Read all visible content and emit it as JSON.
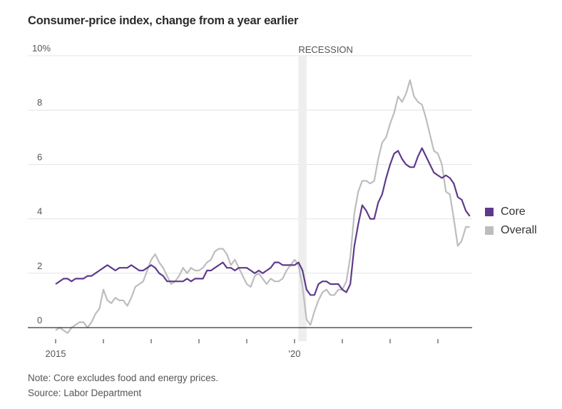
{
  "title": "Consumer-price index, change from a year earlier",
  "footnote": "Note: Core excludes food and energy prices.",
  "source": "Source: Labor Department",
  "colors": {
    "core": "#5e3a8c",
    "overall": "#bdbdbd",
    "recession": "#eeeeee",
    "grid": "#e3e3e3",
    "axis": "#333333"
  },
  "chart_data": {
    "type": "line",
    "title": "Consumer-price index, change from a year earlier",
    "xlabel": "",
    "ylabel": "",
    "ylim": [
      0,
      10
    ],
    "yticks": [
      {
        "value": 10,
        "label": "10%"
      },
      {
        "value": 8,
        "label": "8"
      },
      {
        "value": 6,
        "label": "6"
      },
      {
        "value": 4,
        "label": "4"
      },
      {
        "value": 2,
        "label": "2"
      },
      {
        "value": 0,
        "label": "0"
      }
    ],
    "xticks": [
      {
        "year": 2015,
        "label": "2015"
      },
      {
        "year": 2016,
        "label": ""
      },
      {
        "year": 2017,
        "label": ""
      },
      {
        "year": 2018,
        "label": ""
      },
      {
        "year": 2019,
        "label": ""
      },
      {
        "year": 2020,
        "label": "'20"
      },
      {
        "year": 2021,
        "label": ""
      },
      {
        "year": 2022,
        "label": ""
      },
      {
        "year": 2023,
        "label": ""
      }
    ],
    "x_start": "2015-01",
    "x_frequency": "monthly",
    "annotation": {
      "label": "RECESSION",
      "start": 2020.08,
      "end": 2020.25
    },
    "legend": {
      "position": "right",
      "entries": [
        "Core",
        "Overall"
      ]
    },
    "grid": true,
    "series": [
      {
        "name": "Core",
        "values": [
          1.6,
          1.7,
          1.8,
          1.8,
          1.7,
          1.8,
          1.8,
          1.8,
          1.9,
          1.9,
          2.0,
          2.1,
          2.2,
          2.3,
          2.2,
          2.1,
          2.2,
          2.2,
          2.2,
          2.3,
          2.2,
          2.1,
          2.1,
          2.2,
          2.3,
          2.2,
          2.0,
          1.9,
          1.7,
          1.7,
          1.7,
          1.7,
          1.7,
          1.8,
          1.7,
          1.8,
          1.8,
          1.8,
          2.1,
          2.1,
          2.2,
          2.3,
          2.4,
          2.2,
          2.2,
          2.1,
          2.2,
          2.2,
          2.2,
          2.1,
          2.0,
          2.1,
          2.0,
          2.1,
          2.2,
          2.4,
          2.4,
          2.3,
          2.3,
          2.3,
          2.3,
          2.4,
          2.1,
          1.4,
          1.2,
          1.2,
          1.6,
          1.7,
          1.7,
          1.6,
          1.6,
          1.6,
          1.4,
          1.3,
          1.6,
          3.0,
          3.8,
          4.5,
          4.3,
          4.0,
          4.0,
          4.6,
          4.9,
          5.5,
          6.0,
          6.4,
          6.5,
          6.2,
          6.0,
          5.9,
          5.9,
          6.3,
          6.6,
          6.3,
          6.0,
          5.7,
          5.6,
          5.5,
          5.6,
          5.5,
          5.3,
          4.8,
          4.7,
          4.3,
          4.1
        ]
      },
      {
        "name": "Overall",
        "values": [
          -0.1,
          0.0,
          -0.1,
          -0.2,
          0.0,
          0.1,
          0.2,
          0.2,
          0.0,
          0.2,
          0.5,
          0.7,
          1.4,
          1.0,
          0.9,
          1.1,
          1.0,
          1.0,
          0.8,
          1.1,
          1.5,
          1.6,
          1.7,
          2.1,
          2.5,
          2.7,
          2.4,
          2.2,
          1.9,
          1.6,
          1.7,
          1.9,
          2.2,
          2.0,
          2.2,
          2.1,
          2.1,
          2.2,
          2.4,
          2.5,
          2.8,
          2.9,
          2.9,
          2.7,
          2.3,
          2.5,
          2.2,
          1.9,
          1.6,
          1.5,
          1.9,
          2.0,
          1.8,
          1.6,
          1.8,
          1.7,
          1.7,
          1.8,
          2.1,
          2.3,
          2.5,
          2.3,
          1.5,
          0.3,
          0.1,
          0.6,
          1.0,
          1.3,
          1.4,
          1.2,
          1.2,
          1.4,
          1.4,
          1.7,
          2.6,
          4.2,
          5.0,
          5.4,
          5.4,
          5.3,
          5.4,
          6.2,
          6.8,
          7.0,
          7.5,
          7.9,
          8.5,
          8.3,
          8.6,
          9.1,
          8.5,
          8.3,
          8.2,
          7.7,
          7.1,
          6.5,
          6.4,
          6.0,
          5.0,
          4.9,
          4.0,
          3.0,
          3.2,
          3.7,
          3.7
        ]
      }
    ]
  }
}
